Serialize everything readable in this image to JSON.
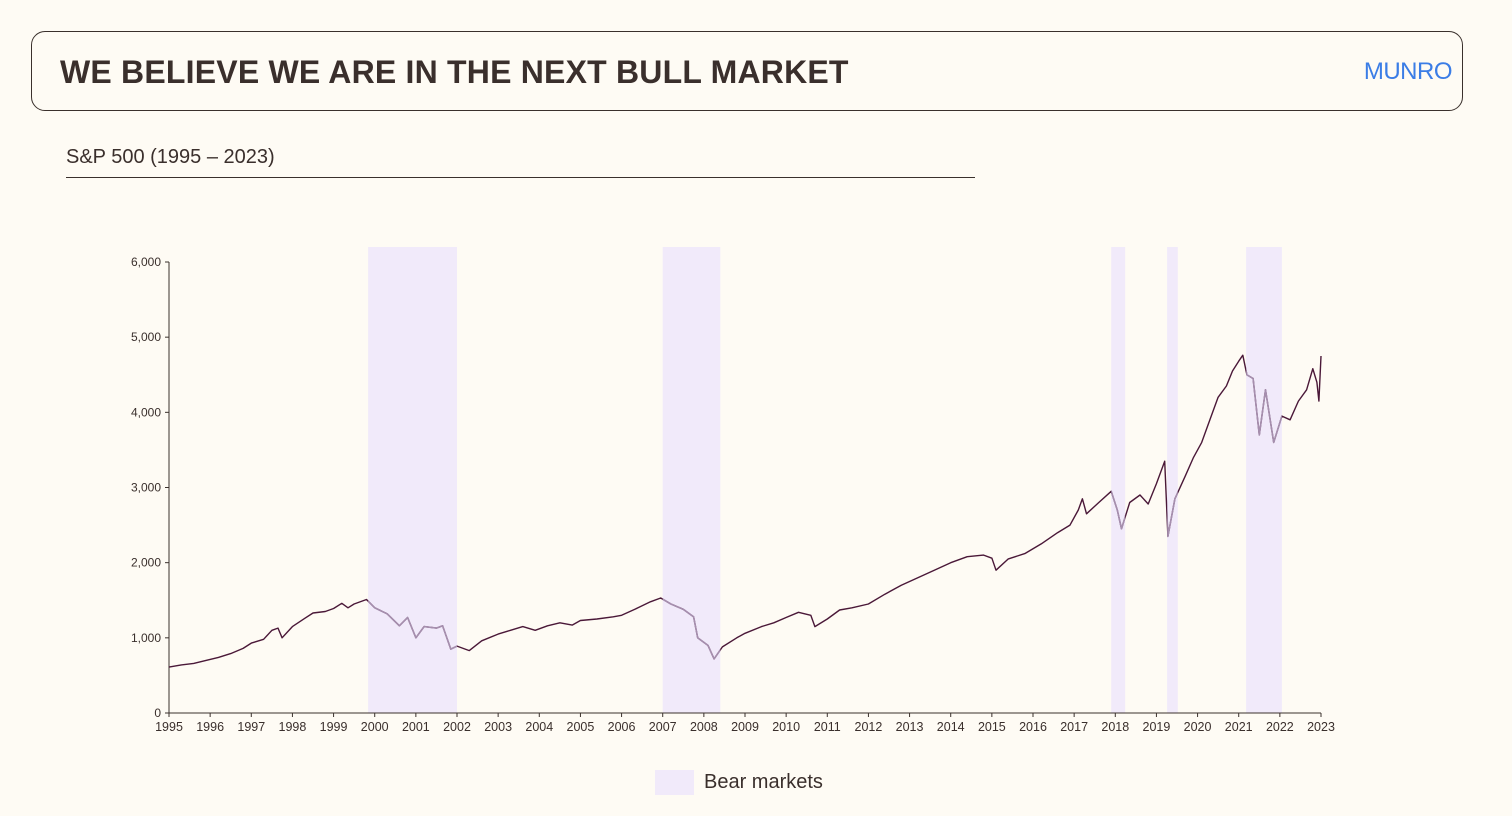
{
  "header": {
    "title": "WE BELIEVE WE ARE IN THE NEXT BULL MARKET",
    "logo": "MUNRO"
  },
  "colors": {
    "line": "#4a1838",
    "line_bear": "#a68fae",
    "bear_fill": "#f1eafa",
    "logo": "#3b7de6"
  },
  "chart_data": {
    "type": "line",
    "title": "S&P 500 (1995 – 2023)",
    "xlim": [
      1995,
      2023
    ],
    "ylim": [
      0,
      6000
    ],
    "grid": false,
    "legend_placement": "bottom",
    "x_ticks": [
      "1995",
      "1996",
      "1997",
      "1998",
      "1999",
      "2000",
      "2001",
      "2002",
      "2003",
      "2004",
      "2005",
      "2006",
      "2007",
      "2008",
      "2009",
      "2010",
      "2011",
      "2012",
      "2013",
      "2014",
      "2015",
      "2016",
      "2017",
      "2018",
      "2019",
      "2020",
      "2021",
      "2022",
      "2023"
    ],
    "y_ticks": [
      0,
      1000,
      2000,
      3000,
      4000,
      5000,
      6000
    ],
    "y_tick_labels": [
      "0",
      "1,000",
      "2,000",
      "3,000",
      "4,000",
      "5,000",
      "6,000"
    ],
    "series": [
      {
        "points": [
          [
            1995.0,
            610
          ],
          [
            1995.3,
            640
          ],
          [
            1995.6,
            660
          ],
          [
            1995.9,
            700
          ],
          [
            1996.2,
            740
          ],
          [
            1996.5,
            790
          ],
          [
            1996.8,
            860
          ],
          [
            1997.0,
            930
          ],
          [
            1997.3,
            980
          ],
          [
            1997.5,
            1100
          ],
          [
            1997.65,
            1130
          ],
          [
            1997.75,
            1000
          ],
          [
            1998.0,
            1150
          ],
          [
            1998.3,
            1260
          ],
          [
            1998.5,
            1330
          ],
          [
            1998.8,
            1350
          ],
          [
            1999.0,
            1390
          ],
          [
            1999.2,
            1460
          ],
          [
            1999.35,
            1400
          ],
          [
            1999.5,
            1450
          ],
          [
            1999.8,
            1510
          ],
          [
            2000.0,
            1400
          ],
          [
            2000.3,
            1320
          ],
          [
            2000.6,
            1160
          ],
          [
            2000.8,
            1270
          ],
          [
            2001.0,
            1000
          ],
          [
            2001.2,
            1150
          ],
          [
            2001.5,
            1130
          ],
          [
            2001.65,
            1160
          ],
          [
            2001.85,
            850
          ],
          [
            2002.0,
            890
          ],
          [
            2002.3,
            830
          ],
          [
            2002.6,
            960
          ],
          [
            2003.0,
            1050
          ],
          [
            2003.3,
            1100
          ],
          [
            2003.6,
            1150
          ],
          [
            2003.9,
            1100
          ],
          [
            2004.2,
            1160
          ],
          [
            2004.5,
            1200
          ],
          [
            2004.8,
            1170
          ],
          [
            2005.0,
            1230
          ],
          [
            2005.4,
            1250
          ],
          [
            2005.8,
            1280
          ],
          [
            2006.0,
            1300
          ],
          [
            2006.4,
            1400
          ],
          [
            2006.7,
            1480
          ],
          [
            2006.95,
            1530
          ],
          [
            2007.2,
            1450
          ],
          [
            2007.5,
            1380
          ],
          [
            2007.75,
            1280
          ],
          [
            2007.85,
            1000
          ],
          [
            2008.1,
            900
          ],
          [
            2008.25,
            720
          ],
          [
            2008.45,
            880
          ],
          [
            2008.8,
            1000
          ],
          [
            2009.0,
            1060
          ],
          [
            2009.4,
            1150
          ],
          [
            2009.7,
            1200
          ],
          [
            2010.0,
            1270
          ],
          [
            2010.3,
            1340
          ],
          [
            2010.6,
            1300
          ],
          [
            2010.7,
            1150
          ],
          [
            2011.0,
            1250
          ],
          [
            2011.3,
            1370
          ],
          [
            2011.6,
            1400
          ],
          [
            2012.0,
            1450
          ],
          [
            2012.4,
            1580
          ],
          [
            2012.8,
            1700
          ],
          [
            2013.2,
            1800
          ],
          [
            2013.6,
            1900
          ],
          [
            2014.0,
            2000
          ],
          [
            2014.4,
            2080
          ],
          [
            2014.8,
            2100
          ],
          [
            2015.0,
            2060
          ],
          [
            2015.1,
            1900
          ],
          [
            2015.4,
            2050
          ],
          [
            2015.8,
            2120
          ],
          [
            2016.2,
            2250
          ],
          [
            2016.6,
            2400
          ],
          [
            2016.9,
            2500
          ],
          [
            2017.1,
            2700
          ],
          [
            2017.2,
            2850
          ],
          [
            2017.3,
            2650
          ],
          [
            2017.6,
            2800
          ],
          [
            2017.9,
            2950
          ],
          [
            2018.05,
            2700
          ],
          [
            2018.15,
            2450
          ],
          [
            2018.35,
            2800
          ],
          [
            2018.6,
            2900
          ],
          [
            2018.8,
            2780
          ],
          [
            2019.0,
            3050
          ],
          [
            2019.2,
            3350
          ],
          [
            2019.28,
            2350
          ],
          [
            2019.45,
            2850
          ],
          [
            2019.7,
            3150
          ],
          [
            2019.9,
            3400
          ],
          [
            2020.1,
            3600
          ],
          [
            2020.3,
            3900
          ],
          [
            2020.5,
            4200
          ],
          [
            2020.7,
            4350
          ],
          [
            2020.85,
            4550
          ],
          [
            2021.0,
            4680
          ],
          [
            2021.1,
            4760
          ],
          [
            2021.2,
            4500
          ],
          [
            2021.35,
            4450
          ],
          [
            2021.5,
            3700
          ],
          [
            2021.65,
            4300
          ],
          [
            2021.85,
            3600
          ],
          [
            2022.05,
            3950
          ],
          [
            2022.25,
            3900
          ],
          [
            2022.45,
            4150
          ],
          [
            2022.65,
            4300
          ],
          [
            2022.8,
            4580
          ],
          [
            2022.9,
            4400
          ],
          [
            2022.95,
            4150
          ],
          [
            2023.0,
            4750
          ]
        ]
      }
    ],
    "bear_markets": [
      [
        1999.84,
        2002.0
      ],
      [
        2007.0,
        2008.4
      ],
      [
        2017.9,
        2018.24
      ],
      [
        2019.26,
        2019.52
      ],
      [
        2021.18,
        2022.05
      ]
    ],
    "legend": [
      {
        "label": "Bear markets"
      }
    ]
  }
}
